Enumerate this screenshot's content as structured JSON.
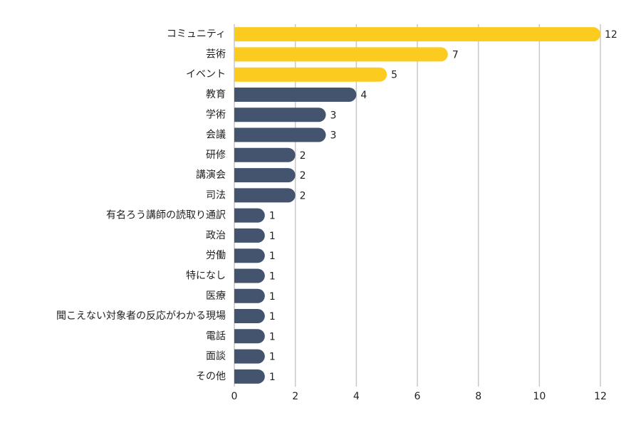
{
  "chart_data": {
    "type": "barh",
    "categories": [
      "コミュニティ",
      "芸術",
      "イベント",
      "教育",
      "学術",
      "会議",
      "研修",
      "講演会",
      "司法",
      "有名ろう講師の読取り通訳",
      "政治",
      "労働",
      "特になし",
      "医療",
      "聞こえない対象者の反応がわかる現場",
      "電話",
      "面談",
      "その他"
    ],
    "values": [
      12,
      7,
      5,
      4,
      3,
      3,
      2,
      2,
      2,
      1,
      1,
      1,
      1,
      1,
      1,
      1,
      1,
      1
    ],
    "colors": [
      "#fccb1f",
      "#fccb1f",
      "#fccb1f",
      "#44546f",
      "#44546f",
      "#44546f",
      "#44546f",
      "#44546f",
      "#44546f",
      "#44546f",
      "#44546f",
      "#44546f",
      "#44546f",
      "#44546f",
      "#44546f",
      "#44546f",
      "#44546f",
      "#44546f"
    ],
    "xlim": [
      0,
      12
    ],
    "xticks": [
      0,
      2,
      4,
      6,
      8,
      10,
      12
    ],
    "grid": true
  }
}
